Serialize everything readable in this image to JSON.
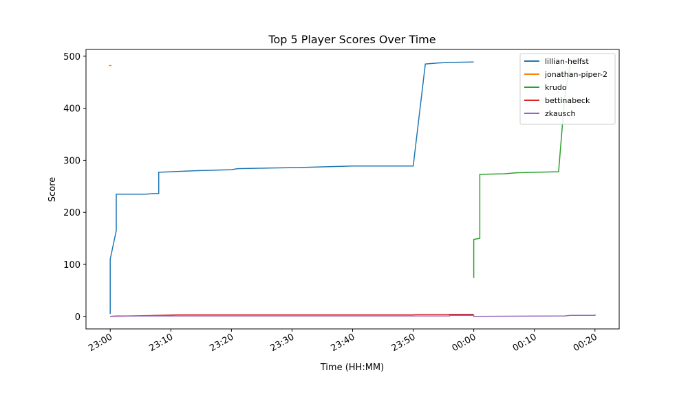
{
  "chart_data": {
    "type": "line",
    "title": "Top 5 Player Scores Over Time",
    "xlabel": "Time (HH:MM)",
    "ylabel": "Score",
    "xlim": [
      "22:56",
      "00:24"
    ],
    "xticks": [
      "23:00",
      "23:10",
      "23:20",
      "23:30",
      "23:40",
      "23:50",
      "00:00",
      "00:10",
      "00:20"
    ],
    "ylim": [
      -24,
      513
    ],
    "yticks": [
      0,
      100,
      200,
      300,
      400,
      500
    ],
    "legend": "upper right",
    "series": [
      {
        "name": "lillian-helfst",
        "color": "#1f77b4",
        "x": [
          "23:00",
          "23:00",
          "23:01",
          "23:01",
          "23:06",
          "23:07",
          "23:08",
          "23:08",
          "23:10",
          "23:14",
          "23:20",
          "23:21",
          "23:26",
          "23:31",
          "23:40",
          "23:50",
          "23:52",
          "23:54",
          "23:56",
          "00:00"
        ],
        "values": [
          5,
          110,
          165,
          235,
          235,
          236,
          236,
          277,
          278,
          280,
          282,
          284,
          285,
          286,
          289,
          289,
          485,
          487,
          488,
          489
        ]
      },
      {
        "name": "jonathan-piper-2",
        "color": "#ff7f0e",
        "x": [
          "23:00"
        ],
        "values": [
          482
        ]
      },
      {
        "name": "krudo",
        "color": "#2ca02c",
        "x": [
          "00:00",
          "00:00",
          "00:01",
          "00:01",
          "00:01",
          "00:05",
          "00:07",
          "00:10",
          "00:14",
          "00:15",
          "00:16"
        ],
        "values": [
          74,
          148,
          150,
          198,
          273,
          274,
          276,
          277,
          278,
          420,
          490
        ]
      },
      {
        "name": "bettinabeck",
        "color": "#d62728",
        "x": [
          "23:00",
          "23:08",
          "23:11",
          "23:50",
          "23:51",
          "00:00"
        ],
        "values": [
          0,
          2,
          3,
          3,
          4,
          4
        ]
      },
      {
        "name": "zkausch",
        "color": "#9467bd",
        "x": [
          "23:00",
          "23:01",
          "23:56",
          "23:56",
          "00:00",
          "00:00",
          "00:15",
          "00:16",
          "00:20",
          "00:20"
        ],
        "values": [
          0,
          1,
          1,
          2,
          2,
          0,
          1,
          2,
          2,
          4
        ]
      }
    ]
  }
}
